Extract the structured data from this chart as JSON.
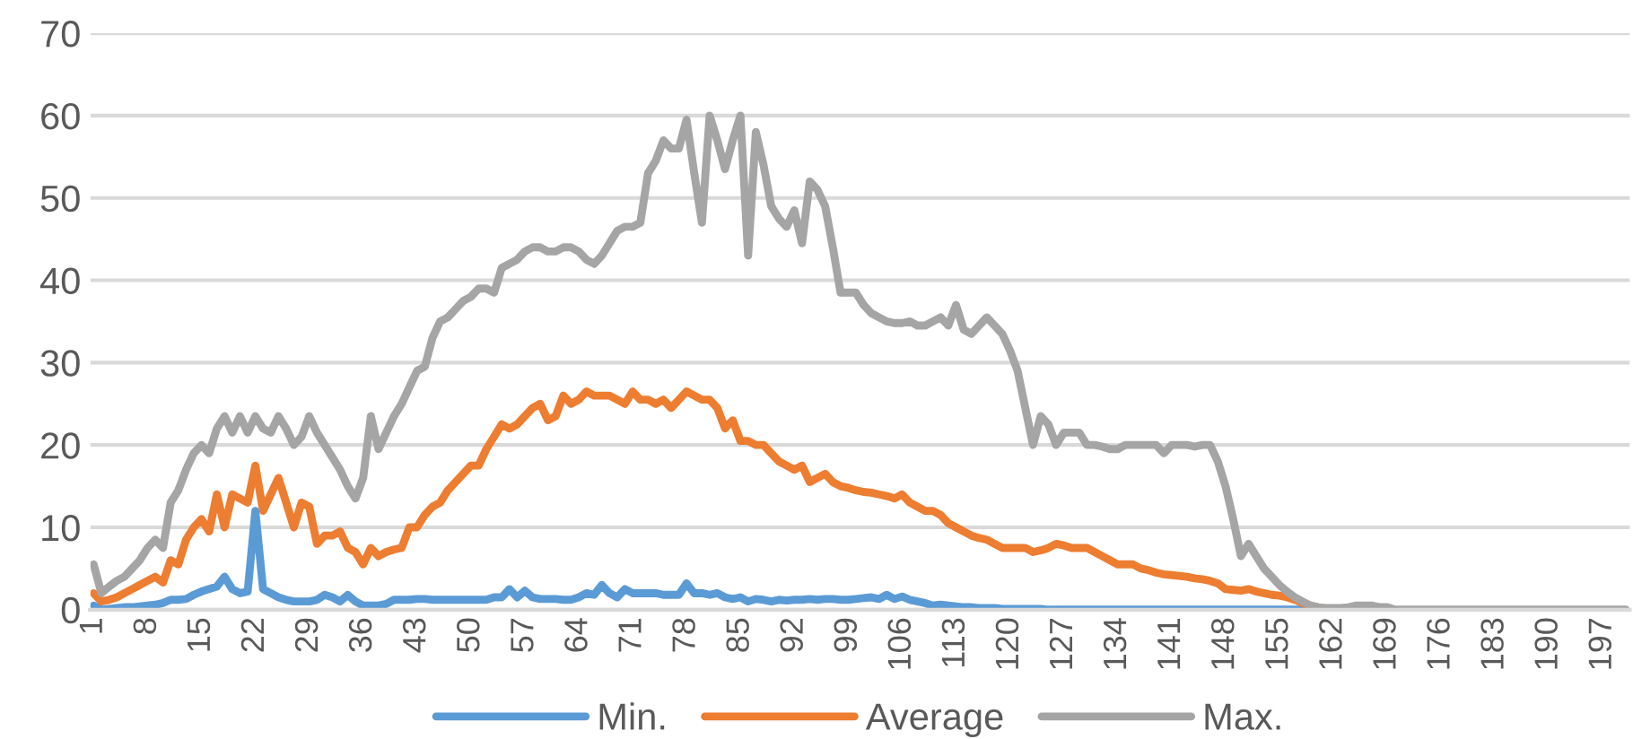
{
  "chart_data": {
    "type": "line",
    "categories": [
      "1",
      null,
      null,
      null,
      null,
      null,
      null,
      "8",
      null,
      null,
      null,
      null,
      null,
      null,
      "15",
      null,
      null,
      null,
      null,
      null,
      null,
      "22",
      null,
      null,
      null,
      null,
      null,
      null,
      "29",
      null,
      null,
      null,
      null,
      null,
      null,
      "36",
      null,
      null,
      null,
      null,
      null,
      null,
      "43",
      null,
      null,
      null,
      null,
      null,
      null,
      "50",
      null,
      null,
      null,
      null,
      null,
      null,
      "57",
      null,
      null,
      null,
      null,
      null,
      null,
      "64",
      null,
      null,
      null,
      null,
      null,
      null,
      "71",
      null,
      null,
      null,
      null,
      null,
      null,
      "78",
      null,
      null,
      null,
      null,
      null,
      null,
      "85",
      null,
      null,
      null,
      null,
      null,
      null,
      "92",
      null,
      null,
      null,
      null,
      null,
      null,
      "99",
      null,
      null,
      null,
      null,
      null,
      null,
      "106",
      null,
      null,
      null,
      null,
      null,
      null,
      "113",
      null,
      null,
      null,
      null,
      null,
      null,
      "120",
      null,
      null,
      null,
      null,
      null,
      null,
      "127",
      null,
      null,
      null,
      null,
      null,
      null,
      "134",
      null,
      null,
      null,
      null,
      null,
      null,
      "141",
      null,
      null,
      null,
      null,
      null,
      null,
      "148",
      null,
      null,
      null,
      null,
      null,
      null,
      "155",
      null,
      null,
      null,
      null,
      null,
      null,
      "162",
      null,
      null,
      null,
      null,
      null,
      null,
      "169",
      null,
      null,
      null,
      null,
      null,
      null,
      "176",
      null,
      null,
      null,
      null,
      null,
      null,
      "183",
      null,
      null,
      null,
      null,
      null,
      null,
      "190",
      null,
      null,
      null,
      null,
      null,
      null,
      "197",
      null,
      null,
      null
    ],
    "series": [
      {
        "name": "Min.",
        "color": "#5b9bd5",
        "values": [
          0.5,
          0,
          0.1,
          0.2,
          0.3,
          0.3,
          0.4,
          0.5,
          0.6,
          0.8,
          1.2,
          1.2,
          1.3,
          1.8,
          2.2,
          2.5,
          2.8,
          4,
          2.5,
          2,
          2.2,
          12,
          2.5,
          2,
          1.5,
          1.2,
          1,
          1,
          1,
          1.2,
          1.8,
          1.5,
          1,
          1.8,
          1,
          0.5,
          0.5,
          0.5,
          0.7,
          1.2,
          1.2,
          1.2,
          1.3,
          1.3,
          1.2,
          1.2,
          1.2,
          1.2,
          1.2,
          1.2,
          1.2,
          1.2,
          1.5,
          1.5,
          2.5,
          1.5,
          2.3,
          1.5,
          1.3,
          1.3,
          1.3,
          1.2,
          1.2,
          1.5,
          2,
          1.8,
          3,
          2,
          1.5,
          2.5,
          2,
          2,
          2,
          2,
          1.8,
          1.8,
          1.8,
          3.2,
          2,
          2,
          1.8,
          2,
          1.5,
          1.3,
          1.5,
          1,
          1.3,
          1.2,
          1,
          1.2,
          1.1,
          1.2,
          1.2,
          1.3,
          1.2,
          1.3,
          1.3,
          1.2,
          1.2,
          1.3,
          1.4,
          1.5,
          1.3,
          1.8,
          1.3,
          1.6,
          1.2,
          1,
          0.8,
          0.5,
          0.6,
          0.5,
          0.4,
          0.3,
          0.3,
          0.2,
          0.2,
          0.2,
          0.1,
          0.1,
          0.1,
          0.1,
          0.1,
          0.1,
          0,
          0,
          0,
          0,
          0,
          0,
          0,
          0,
          0,
          0,
          0,
          0,
          0,
          0,
          0,
          0,
          0,
          0,
          0,
          0,
          0,
          0,
          0,
          0,
          0,
          0,
          0,
          0,
          0,
          0,
          0,
          0,
          0,
          0,
          0,
          0,
          null,
          null,
          null,
          null,
          null,
          null,
          null,
          null,
          null,
          null,
          null,
          null,
          null,
          null,
          null,
          null,
          null,
          null,
          null,
          null,
          null,
          null,
          null,
          null,
          null,
          null,
          null,
          null,
          null,
          null,
          null,
          null,
          null,
          null,
          null,
          null,
          null,
          null,
          null,
          null
        ]
      },
      {
        "name": "Average",
        "color": "#ed7d31",
        "values": [
          2,
          1,
          1.2,
          1.5,
          2,
          2.5,
          3,
          3.5,
          4,
          3.3,
          6,
          5.5,
          8.5,
          10,
          11,
          9.5,
          14,
          10,
          14,
          13.5,
          13,
          17.5,
          12,
          14,
          16,
          13,
          10,
          13,
          12.5,
          8,
          9,
          9,
          9.5,
          7.5,
          7,
          5.5,
          7.5,
          6.5,
          7,
          7.3,
          7.5,
          10,
          10,
          11.5,
          12.5,
          13,
          14.5,
          15.5,
          16.5,
          17.5,
          17.5,
          19.5,
          21,
          22.5,
          22,
          22.5,
          23.5,
          24.5,
          25,
          23,
          23.5,
          26,
          25,
          25.5,
          26.5,
          26,
          26,
          26,
          25.5,
          25,
          26.5,
          25.5,
          25.5,
          25,
          25.5,
          24.5,
          25.5,
          26.5,
          26,
          25.5,
          25.5,
          24.5,
          22,
          23,
          20.5,
          20.5,
          20,
          20,
          19,
          18,
          17.5,
          17,
          17.5,
          15.5,
          16,
          16.5,
          15.5,
          15,
          14.8,
          14.5,
          14.3,
          14.2,
          14,
          13.8,
          13.5,
          14,
          13,
          12.5,
          12,
          12,
          11.5,
          10.5,
          10,
          9.5,
          9,
          8.7,
          8.5,
          8,
          7.5,
          7.5,
          7.5,
          7.5,
          7,
          7.2,
          7.5,
          8,
          7.8,
          7.5,
          7.5,
          7.5,
          7,
          6.5,
          6,
          5.5,
          5.5,
          5.5,
          5,
          4.8,
          4.5,
          4.3,
          4.2,
          4.1,
          4,
          3.8,
          3.7,
          3.5,
          3.2,
          2.5,
          2.4,
          2.3,
          2.5,
          2.2,
          2,
          1.8,
          1.7,
          1.5,
          1.2,
          0.8,
          0.5,
          0.3,
          null,
          null,
          null,
          null,
          null,
          null,
          null,
          null,
          null,
          null,
          null,
          null,
          null,
          null,
          null,
          null,
          null,
          null,
          null,
          null,
          null,
          null,
          null,
          null,
          null,
          null,
          null,
          null,
          null,
          null,
          null,
          null,
          null,
          null,
          null,
          null,
          null,
          null,
          null,
          null
        ]
      },
      {
        "name": "Max.",
        "color": "#a5a5a5",
        "values": [
          5.5,
          2,
          2.8,
          3.5,
          4,
          5,
          6,
          7.5,
          8.5,
          7.5,
          13,
          14.5,
          17,
          19,
          20,
          19,
          22,
          23.5,
          21.5,
          23.5,
          21.5,
          23.5,
          22,
          21.5,
          23.5,
          22,
          20,
          21,
          23.5,
          21.5,
          20,
          18.5,
          17,
          15,
          13.5,
          16,
          23.5,
          19.5,
          21.5,
          23.5,
          25,
          27,
          29,
          29.5,
          33,
          35,
          35.5,
          36.5,
          37.5,
          38,
          39,
          39,
          38.5,
          41.5,
          42,
          42.5,
          43.5,
          44,
          44,
          43.5,
          43.5,
          44,
          44,
          43.5,
          42.5,
          42,
          43,
          44.5,
          46,
          46.5,
          46.5,
          47,
          53,
          54.5,
          57,
          56,
          56,
          59.5,
          53,
          47,
          60,
          57,
          53.5,
          57,
          60,
          43,
          58,
          54,
          49,
          47.5,
          46.5,
          48.5,
          44.5,
          52,
          51,
          49,
          44,
          38.5,
          38.5,
          38.5,
          37,
          36,
          35.5,
          35,
          34.8,
          34.8,
          35,
          34.5,
          34.5,
          35,
          35.5,
          34.5,
          37,
          34,
          33.5,
          34.5,
          35.5,
          34.5,
          33.5,
          31.5,
          29,
          24.5,
          20,
          23.5,
          22.5,
          20,
          21.5,
          21.5,
          21.5,
          20,
          20,
          19.8,
          19.5,
          19.5,
          20,
          20,
          20,
          20,
          20,
          19,
          20,
          20,
          20,
          19.8,
          20,
          20,
          18,
          15,
          11,
          6.5,
          8,
          6.5,
          5,
          4,
          3,
          2.2,
          1.5,
          1,
          0.5,
          0.3,
          0.2,
          0.2,
          0.2,
          0.3,
          0.5,
          0.5,
          0.5,
          0.3,
          0.3,
          0,
          0,
          0,
          0,
          0,
          0,
          0,
          0,
          0,
          0,
          0,
          0,
          0,
          0,
          0,
          0,
          0,
          0,
          0,
          0,
          0,
          0,
          0,
          0,
          0,
          0,
          0,
          0,
          0,
          0,
          0
        ]
      }
    ],
    "ylim": [
      0,
      70
    ],
    "yticks": [
      0,
      10,
      20,
      30,
      40,
      50,
      60,
      70
    ],
    "grid": "y",
    "legend": "bottom",
    "marker": "none",
    "line_style": "solid"
  }
}
